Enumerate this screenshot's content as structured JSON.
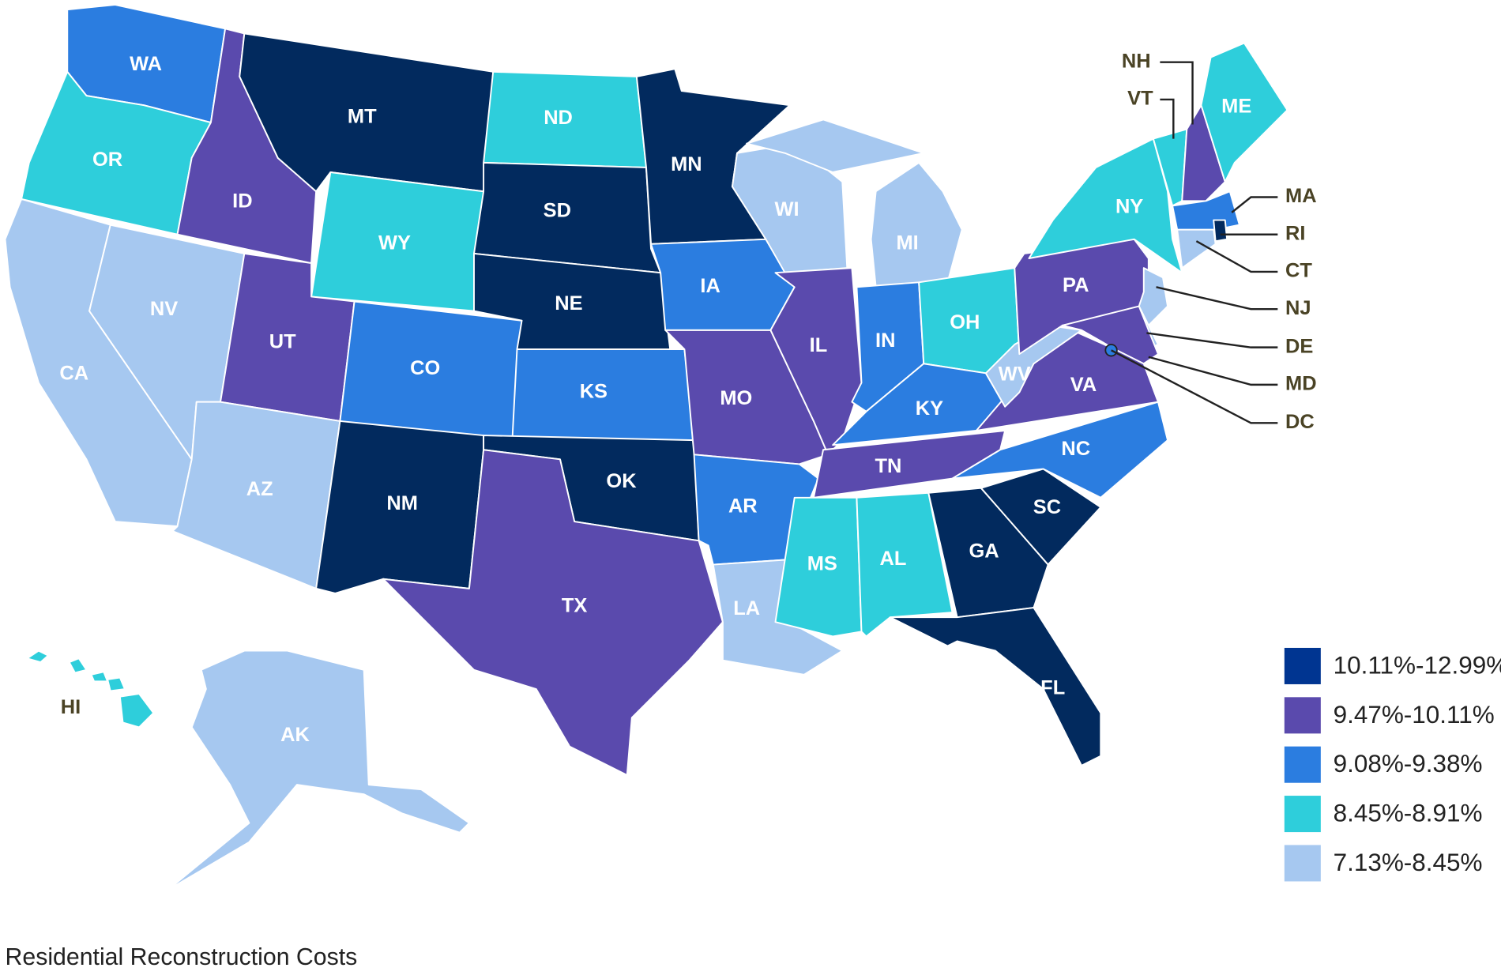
{
  "title": "Residential Reconstruction Costs",
  "legend": [
    {
      "label": "10.11%-12.99%",
      "swatch": "#003591",
      "fill": "#022a5e"
    },
    {
      "label": "9.47%-10.11%",
      "swatch": "#5a4aad",
      "fill": "#5a4aad"
    },
    {
      "label": "9.08%-9.38%",
      "swatch": "#2b7de0",
      "fill": "#2b7de0"
    },
    {
      "label": "8.45%-8.91%",
      "swatch": "#2ecedb",
      "fill": "#2ecedb"
    },
    {
      "label": "7.13%-8.45%",
      "swatch": "#a6c8f0",
      "fill": "#a6c8f0"
    }
  ],
  "states": {
    "WA": 2,
    "OR": 3,
    "CA": 4,
    "NV": 4,
    "ID": 1,
    "MT": 0,
    "WY": 3,
    "UT": 1,
    "AZ": 4,
    "CO": 2,
    "NM": 0,
    "ND": 3,
    "SD": 0,
    "NE": 0,
    "KS": 2,
    "OK": 0,
    "TX": 1,
    "MN": 0,
    "IA": 2,
    "MO": 1,
    "AR": 2,
    "LA": 4,
    "WI": 4,
    "IL": 1,
    "MI": 4,
    "IN": 2,
    "OH": 3,
    "KY": 2,
    "TN": 1,
    "MS": 3,
    "AL": 3,
    "GA": 0,
    "FL": 0,
    "SC": 0,
    "NC": 2,
    "VA": 1,
    "WV": 4,
    "PA": 1,
    "NY": 3,
    "VT": 3,
    "NH": 1,
    "ME": 3,
    "MA": 2,
    "CT": 4,
    "RI": 0,
    "NJ": 4,
    "DE": 4,
    "MD": 1,
    "DC": 2,
    "HI": 3,
    "AK": 4
  },
  "external_labels": [
    "NH",
    "VT",
    "MA",
    "RI",
    "CT",
    "NJ",
    "DE",
    "MD",
    "DC",
    "HI"
  ]
}
